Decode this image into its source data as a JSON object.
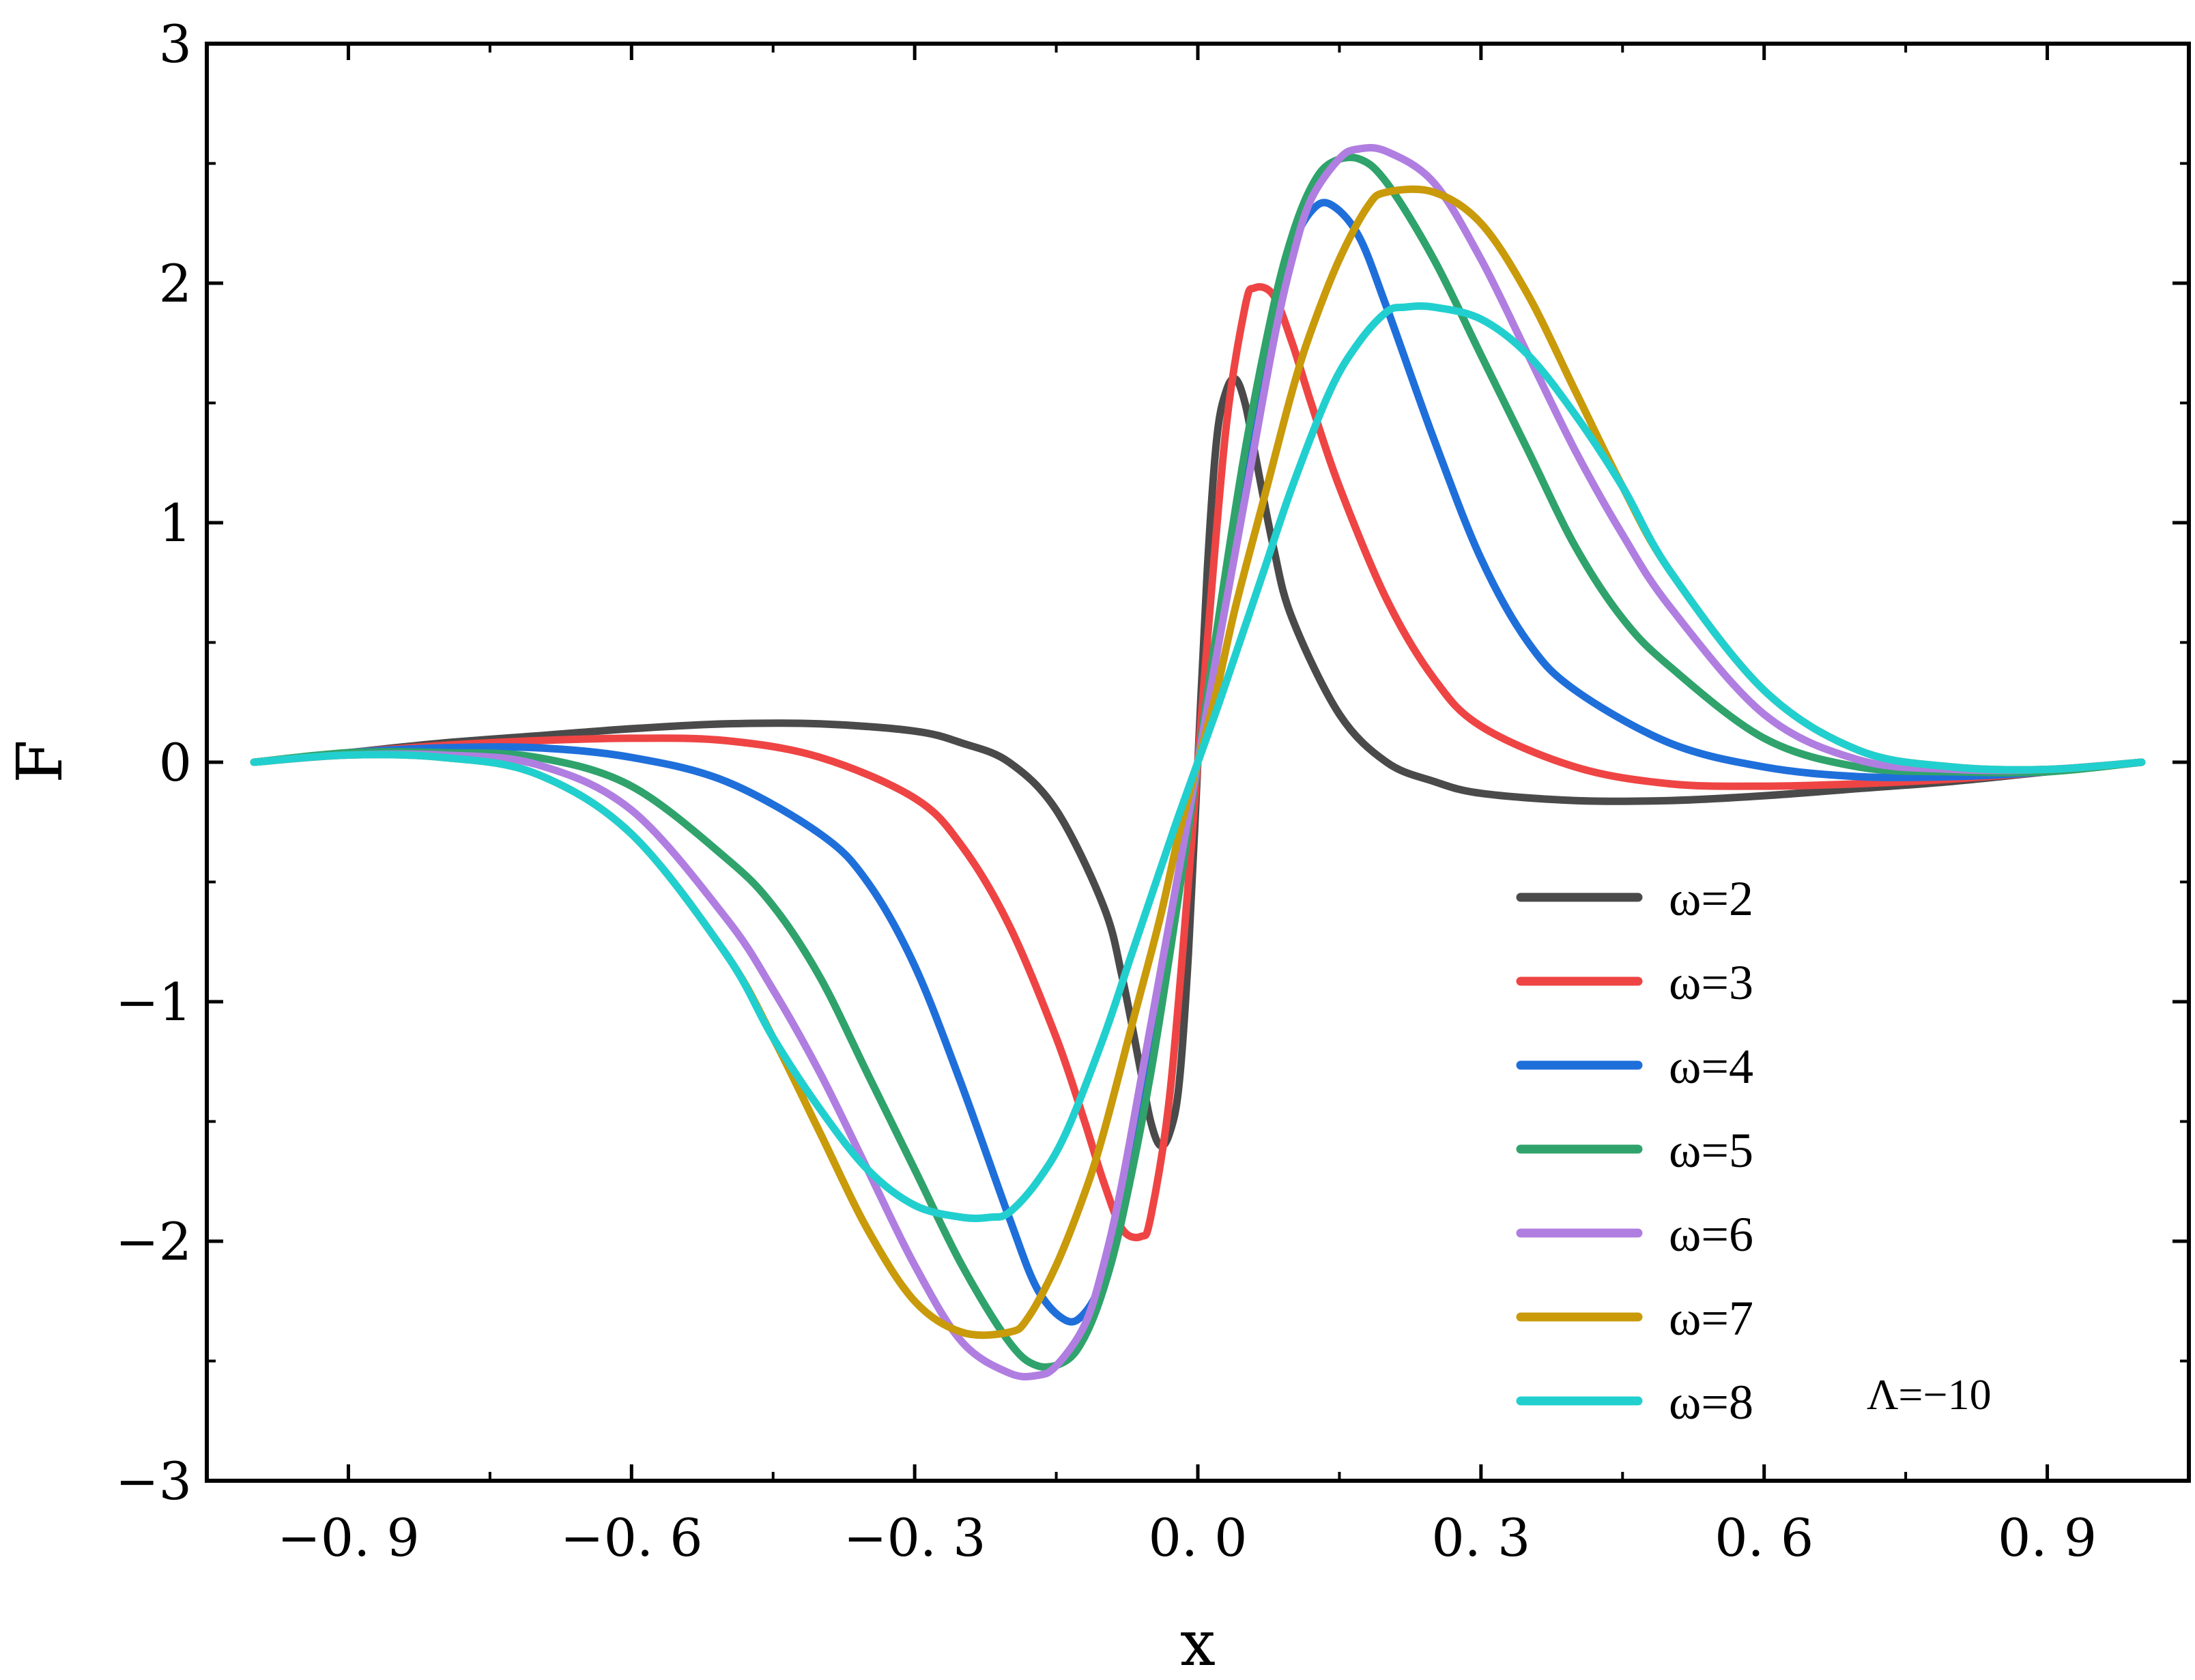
{
  "chart_data": {
    "type": "line",
    "title": "",
    "xlabel": "x",
    "ylabel": "F",
    "xlim": [
      -1.05,
      1.05
    ],
    "ylim": [
      -3,
      3
    ],
    "x_ticks": [
      -0.9,
      -0.6,
      -0.3,
      0.0,
      0.3,
      0.6,
      0.9
    ],
    "x_tick_labels": [
      "−0. 9",
      "−0. 6",
      "−0. 3",
      "0. 0",
      "0. 3",
      "0. 6",
      "0. 9"
    ],
    "y_ticks": [
      -3,
      -2,
      -1,
      0,
      1,
      2,
      3
    ],
    "y_tick_labels": [
      "−3",
      "−2",
      "−1",
      "0",
      "1",
      "2",
      "3"
    ],
    "grid": false,
    "legend_position": "bottom-right",
    "annotation": "Λ=−10",
    "series": [
      {
        "name": "ω=2",
        "color": "#4a4a4a",
        "x": [
          -1.0,
          -0.9,
          -0.8,
          -0.7,
          -0.6,
          -0.5,
          -0.4,
          -0.3,
          -0.25,
          -0.2,
          -0.15,
          -0.1,
          -0.08,
          -0.06,
          -0.05,
          -0.04,
          -0.03,
          -0.02,
          -0.01,
          0.0,
          0.01,
          0.02,
          0.03,
          0.04,
          0.05,
          0.06,
          0.08,
          0.1,
          0.15,
          0.2,
          0.25,
          0.3,
          0.4,
          0.5,
          0.6,
          0.7,
          0.8,
          0.9,
          1.0
        ],
        "y": [
          0.0,
          0.04,
          0.08,
          0.11,
          0.14,
          0.16,
          0.16,
          0.13,
          0.08,
          0.0,
          -0.2,
          -0.6,
          -0.9,
          -1.3,
          -1.5,
          -1.6,
          -1.55,
          -1.35,
          -0.8,
          0.0,
          0.8,
          1.35,
          1.55,
          1.6,
          1.5,
          1.3,
          0.9,
          0.6,
          0.2,
          0.0,
          -0.08,
          -0.13,
          -0.16,
          -0.16,
          -0.14,
          -0.11,
          -0.08,
          -0.04,
          0.0
        ]
      },
      {
        "name": "ω=3",
        "color": "#ef4444",
        "x": [
          -1.0,
          -0.9,
          -0.8,
          -0.7,
          -0.6,
          -0.5,
          -0.4,
          -0.3,
          -0.25,
          -0.2,
          -0.15,
          -0.12,
          -0.1,
          -0.08,
          -0.06,
          -0.05,
          -0.03,
          -0.01,
          0.0,
          0.01,
          0.03,
          0.05,
          0.06,
          0.08,
          0.1,
          0.12,
          0.15,
          0.2,
          0.25,
          0.3,
          0.4,
          0.5,
          0.6,
          0.7,
          0.8,
          0.9,
          1.0
        ],
        "y": [
          0.0,
          0.04,
          0.07,
          0.09,
          0.1,
          0.09,
          0.02,
          -0.15,
          -0.35,
          -0.68,
          -1.15,
          -1.5,
          -1.75,
          -1.95,
          -1.98,
          -1.9,
          -1.4,
          -0.5,
          0.0,
          0.5,
          1.4,
          1.9,
          1.98,
          1.95,
          1.75,
          1.5,
          1.15,
          0.68,
          0.35,
          0.15,
          -0.02,
          -0.09,
          -0.1,
          -0.09,
          -0.07,
          -0.04,
          0.0
        ]
      },
      {
        "name": "ω=4",
        "color": "#1f6fdb",
        "x": [
          -1.0,
          -0.9,
          -0.8,
          -0.7,
          -0.6,
          -0.5,
          -0.4,
          -0.35,
          -0.3,
          -0.25,
          -0.2,
          -0.17,
          -0.14,
          -0.12,
          -0.1,
          -0.08,
          -0.06,
          -0.04,
          -0.02,
          0.0,
          0.02,
          0.04,
          0.06,
          0.08,
          0.1,
          0.12,
          0.14,
          0.17,
          0.2,
          0.25,
          0.3,
          0.35,
          0.4,
          0.5,
          0.6,
          0.7,
          0.8,
          0.9,
          1.0
        ],
        "y": [
          0.0,
          0.04,
          0.06,
          0.06,
          0.02,
          -0.08,
          -0.3,
          -0.5,
          -0.85,
          -1.35,
          -1.9,
          -2.2,
          -2.33,
          -2.3,
          -2.15,
          -1.85,
          -1.45,
          -0.95,
          -0.45,
          0.0,
          0.45,
          0.95,
          1.45,
          1.85,
          2.15,
          2.3,
          2.33,
          2.2,
          1.9,
          1.35,
          0.85,
          0.5,
          0.3,
          0.08,
          -0.02,
          -0.06,
          -0.06,
          -0.04,
          0.0
        ]
      },
      {
        "name": "ω=5",
        "color": "#2fa36b",
        "x": [
          -1.0,
          -0.9,
          -0.8,
          -0.7,
          -0.6,
          -0.5,
          -0.45,
          -0.4,
          -0.35,
          -0.3,
          -0.25,
          -0.2,
          -0.17,
          -0.14,
          -0.12,
          -0.1,
          -0.08,
          -0.05,
          -0.02,
          0.0,
          0.02,
          0.05,
          0.08,
          0.1,
          0.12,
          0.14,
          0.17,
          0.2,
          0.25,
          0.3,
          0.35,
          0.4,
          0.45,
          0.5,
          0.6,
          0.7,
          0.8,
          0.9,
          1.0
        ],
        "y": [
          0.0,
          0.04,
          0.04,
          0.02,
          -0.1,
          -0.4,
          -0.6,
          -0.9,
          -1.3,
          -1.7,
          -2.1,
          -2.42,
          -2.52,
          -2.5,
          -2.4,
          -2.2,
          -1.9,
          -1.3,
          -0.55,
          0.0,
          0.55,
          1.3,
          1.9,
          2.2,
          2.4,
          2.5,
          2.52,
          2.42,
          2.1,
          1.7,
          1.3,
          0.9,
          0.6,
          0.4,
          0.1,
          -0.02,
          -0.04,
          -0.04,
          0.0
        ]
      },
      {
        "name": "ω=6",
        "color": "#b07ee0",
        "x": [
          -1.0,
          -0.9,
          -0.8,
          -0.7,
          -0.6,
          -0.5,
          -0.45,
          -0.4,
          -0.35,
          -0.3,
          -0.25,
          -0.2,
          -0.17,
          -0.15,
          -0.12,
          -0.1,
          -0.08,
          -0.05,
          -0.02,
          0.0,
          0.02,
          0.05,
          0.08,
          0.1,
          0.12,
          0.15,
          0.17,
          0.2,
          0.25,
          0.3,
          0.35,
          0.4,
          0.45,
          0.5,
          0.6,
          0.7,
          0.8,
          0.9,
          1.0
        ],
        "y": [
          0.0,
          0.03,
          0.03,
          -0.01,
          -0.2,
          -0.65,
          -0.95,
          -1.3,
          -1.7,
          -2.1,
          -2.42,
          -2.55,
          -2.56,
          -2.52,
          -2.35,
          -2.1,
          -1.75,
          -1.1,
          -0.45,
          0.0,
          0.45,
          1.1,
          1.75,
          2.1,
          2.35,
          2.52,
          2.56,
          2.55,
          2.42,
          2.1,
          1.7,
          1.3,
          0.95,
          0.65,
          0.2,
          0.01,
          -0.03,
          -0.03,
          0.0
        ]
      },
      {
        "name": "ω=7",
        "color": "#c99a0a",
        "x": [
          -1.0,
          -0.9,
          -0.8,
          -0.7,
          -0.6,
          -0.5,
          -0.45,
          -0.4,
          -0.35,
          -0.3,
          -0.25,
          -0.2,
          -0.18,
          -0.15,
          -0.12,
          -0.1,
          -0.07,
          -0.04,
          -0.02,
          0.0,
          0.02,
          0.04,
          0.07,
          0.1,
          0.12,
          0.15,
          0.18,
          0.2,
          0.25,
          0.3,
          0.35,
          0.4,
          0.45,
          0.5,
          0.6,
          0.7,
          0.8,
          0.9,
          1.0
        ],
        "y": [
          0.0,
          0.03,
          0.02,
          -0.05,
          -0.3,
          -0.8,
          -1.15,
          -1.55,
          -1.95,
          -2.25,
          -2.38,
          -2.38,
          -2.32,
          -2.1,
          -1.8,
          -1.55,
          -1.1,
          -0.65,
          -0.3,
          0.0,
          0.3,
          0.65,
          1.1,
          1.55,
          1.8,
          2.1,
          2.32,
          2.38,
          2.38,
          2.25,
          1.95,
          1.55,
          1.15,
          0.8,
          0.3,
          0.05,
          -0.02,
          -0.03,
          0.0
        ]
      },
      {
        "name": "ω=8",
        "color": "#22cfcf",
        "x": [
          -1.0,
          -0.9,
          -0.8,
          -0.7,
          -0.6,
          -0.5,
          -0.45,
          -0.4,
          -0.35,
          -0.3,
          -0.25,
          -0.22,
          -0.2,
          -0.17,
          -0.14,
          -0.1,
          -0.07,
          -0.04,
          -0.02,
          0.0,
          0.02,
          0.04,
          0.07,
          0.1,
          0.14,
          0.17,
          0.2,
          0.22,
          0.25,
          0.3,
          0.35,
          0.4,
          0.45,
          0.5,
          0.6,
          0.7,
          0.8,
          0.9,
          1.0
        ],
        "y": [
          0.0,
          0.03,
          0.02,
          -0.05,
          -0.3,
          -0.8,
          -1.15,
          -1.45,
          -1.7,
          -1.85,
          -1.9,
          -1.9,
          -1.88,
          -1.75,
          -1.55,
          -1.15,
          -0.8,
          -0.45,
          -0.22,
          0.0,
          0.22,
          0.45,
          0.8,
          1.15,
          1.55,
          1.75,
          1.88,
          1.9,
          1.9,
          1.85,
          1.7,
          1.45,
          1.15,
          0.8,
          0.3,
          0.05,
          -0.02,
          -0.03,
          0.0
        ]
      }
    ]
  }
}
